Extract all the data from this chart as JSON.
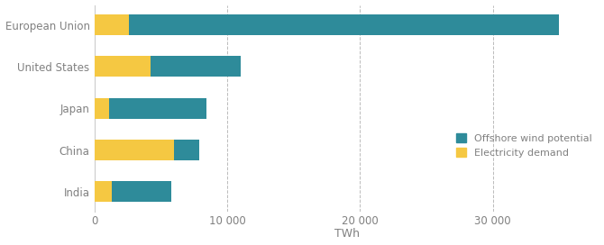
{
  "categories": [
    "India",
    "China",
    "Japan",
    "United States",
    "European Union"
  ],
  "electricity_demand": [
    1300,
    6000,
    1050,
    4200,
    2600
  ],
  "offshore_wind_potential": [
    5800,
    7900,
    8400,
    11000,
    35000
  ],
  "color_offshore": "#2e8b9a",
  "color_demand": "#f5c842",
  "legend_offshore": "Offshore wind potential",
  "legend_demand": "Electricity demand",
  "xlabel": "TWh",
  "xlim": [
    0,
    38000
  ],
  "xticks": [
    0,
    10000,
    20000,
    30000
  ],
  "xtick_labels": [
    "0",
    "10 000",
    "20 000",
    "30 000"
  ],
  "background_color": "#ffffff",
  "grid_color": "#bbbbbb",
  "bar_height": 0.5,
  "label_color": "#808080",
  "tick_color": "#808080"
}
